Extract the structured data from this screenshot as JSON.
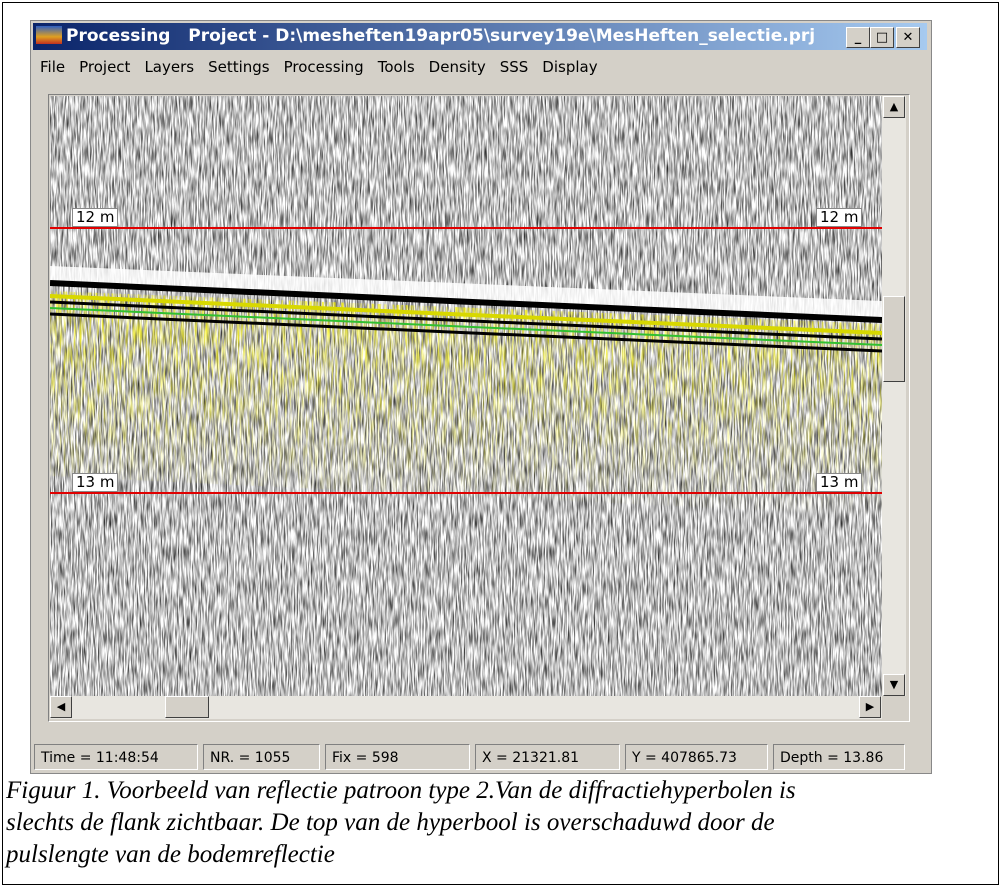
{
  "window": {
    "title_app": "Processing",
    "title_project": "Project - D:\\mesheften19apr05\\survey19e\\MesHeften_selectie.prj",
    "menu": [
      "File",
      "Project",
      "Layers",
      "Settings",
      "Processing",
      "Tools",
      "Density",
      "SSS",
      "Display"
    ],
    "depth_labels": [
      "12 m",
      "12 m",
      "13 m",
      "13 m"
    ],
    "status": [
      "Time = 11:48:54",
      "NR. = 1055",
      "Fix = 598",
      "X =  21321.81",
      "Y = 407865.73",
      "Depth = 13.86"
    ]
  },
  "caption": {
    "lines": [
      "Figuur 1. Voorbeeld van reflectie patroon type 2.Van de diffractiehyperbolen is",
      "slechts de flank zichtbaar. De top van de hyperbool is overschaduwd door de",
      "pulslengte van de bodemreflectie"
    ]
  }
}
